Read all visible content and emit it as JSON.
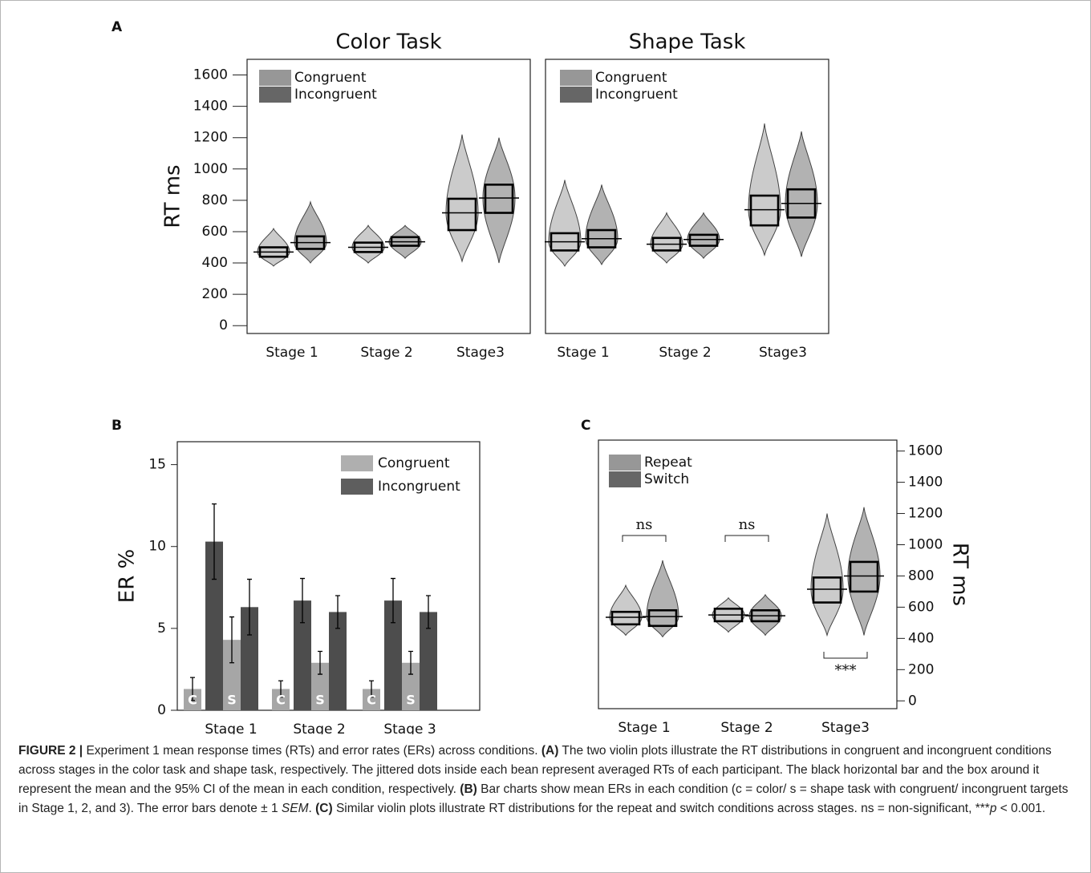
{
  "panels": [
    "A",
    "B",
    "C"
  ],
  "chart_data": [
    {
      "type": "violin",
      "title": "Color Task",
      "y_label": "RT ms",
      "legend": "upper left",
      "categories": [
        "Stage 1",
        "Stage 2",
        "Stage3"
      ],
      "ylim": [
        -50,
        1700
      ],
      "yticks": [
        0,
        200,
        400,
        600,
        800,
        1000,
        1200,
        1400,
        1600
      ],
      "series": [
        {
          "name": "Congruent",
          "color": "#8c8c8c",
          "mean": [
            470,
            500,
            720
          ],
          "ci": [
            [
              440,
              500
            ],
            [
              470,
              530
            ],
            [
              610,
              810
            ]
          ],
          "range": [
            [
              380,
              620
            ],
            [
              400,
              640
            ],
            [
              410,
              1220
            ]
          ]
        },
        {
          "name": "Incongruent",
          "color": "#555555",
          "mean": [
            530,
            535,
            815
          ],
          "ci": [
            [
              490,
              570
            ],
            [
              510,
              565
            ],
            [
              720,
              900
            ]
          ],
          "range": [
            [
              400,
              790
            ],
            [
              430,
              640
            ],
            [
              400,
              1200
            ]
          ]
        }
      ]
    },
    {
      "type": "violin",
      "title": "Shape Task",
      "legend": "upper left",
      "categories": [
        "Stage 1",
        "Stage 2",
        "Stage3"
      ],
      "ylim": [
        -50,
        1700
      ],
      "series": [
        {
          "name": "Congruent",
          "color": "#8c8c8c",
          "mean": [
            535,
            520,
            740
          ],
          "ci": [
            [
              480,
              590
            ],
            [
              480,
              560
            ],
            [
              640,
              830
            ]
          ],
          "range": [
            [
              380,
              930
            ],
            [
              400,
              720
            ],
            [
              450,
              1290
            ]
          ]
        },
        {
          "name": "Incongruent",
          "color": "#555555",
          "mean": [
            555,
            550,
            780
          ],
          "ci": [
            [
              500,
              610
            ],
            [
              510,
              580
            ],
            [
              690,
              870
            ]
          ],
          "range": [
            [
              390,
              900
            ],
            [
              430,
              720
            ],
            [
              440,
              1240
            ]
          ]
        }
      ]
    },
    {
      "type": "bar",
      "y_label": "ER %",
      "legend": "upper right",
      "categories": [
        "Stage 1",
        "Stage 2",
        "Stage 3"
      ],
      "subgroups": [
        "C",
        "S"
      ],
      "ylim": [
        0,
        16.4
      ],
      "yticks": [
        0,
        5,
        10,
        15
      ],
      "series": [
        {
          "name": "Congruent",
          "color": "#a6a6a6",
          "values": [
            [
              1.3,
              4.3
            ],
            [
              1.3,
              2.9
            ],
            [
              1.3,
              2.9
            ]
          ],
          "errors": [
            [
              0.7,
              1.4
            ],
            [
              0.5,
              0.7
            ],
            [
              0.5,
              0.7
            ]
          ]
        },
        {
          "name": "Incongruent",
          "color": "#4d4d4d",
          "values": [
            [
              10.3,
              6.3
            ],
            [
              6.7,
              6.0
            ],
            [
              6.7,
              6.0
            ]
          ],
          "errors": [
            [
              2.3,
              1.7
            ],
            [
              1.35,
              1.0
            ],
            [
              1.35,
              1.0
            ]
          ]
        }
      ]
    },
    {
      "type": "violin",
      "y_label": "RT ms",
      "y_axis_side": "right",
      "legend": "upper left",
      "categories": [
        "Stage 1",
        "Stage 2",
        "Stage3"
      ],
      "ylim": [
        -50,
        1670
      ],
      "yticks": [
        0,
        200,
        400,
        600,
        800,
        1000,
        1200,
        1400,
        1600
      ],
      "annotations": [
        {
          "text": "ns",
          "category": 0,
          "position": "above"
        },
        {
          "text": "ns",
          "category": 1,
          "position": "above"
        },
        {
          "text": "***",
          "category": 2,
          "position": "below"
        }
      ],
      "series": [
        {
          "name": "Repeat",
          "color": "#8c8c8c",
          "mean": [
            535,
            550,
            715
          ],
          "ci": [
            [
              490,
              570
            ],
            [
              510,
              590
            ],
            [
              630,
              790
            ]
          ],
          "range": [
            [
              420,
              740
            ],
            [
              440,
              660
            ],
            [
              420,
              1200
            ]
          ]
        },
        {
          "name": "Switch",
          "color": "#555555",
          "mean": [
            540,
            545,
            800
          ],
          "ci": [
            [
              480,
              580
            ],
            [
              510,
              580
            ],
            [
              700,
              890
            ]
          ],
          "range": [
            [
              410,
              900
            ],
            [
              420,
              680
            ],
            [
              420,
              1240
            ]
          ]
        }
      ]
    }
  ],
  "caption": [
    {
      "text": "FIGURE 2 |",
      "style": "bold"
    },
    {
      "text": " Experiment 1 mean response times (RTs) and error rates (ERs) across conditions. "
    },
    {
      "text": "(A)",
      "style": "bold"
    },
    {
      "text": " The two violin plots illustrate the RT distributions in congruent and incongruent conditions across stages in the color task and shape task, respectively. The jittered dots inside each bean represent averaged RTs of each participant. The black horizontal bar and the box around it represent the mean and the 95% CI of the mean in each condition, respectively. "
    },
    {
      "text": "(B)",
      "style": "bold"
    },
    {
      "text": " Bar charts show mean ERs in each condition (c = color/ s = shape task with congruent/ incongruent targets in Stage 1, 2, and 3). The error bars denote ± 1 "
    },
    {
      "text": "SEM",
      "style": "italic"
    },
    {
      "text": ". "
    },
    {
      "text": "(C)",
      "style": "bold"
    },
    {
      "text": " Similar violin plots illustrate RT distributions for the repeat and switch conditions across stages. ns = non-significant, ***"
    },
    {
      "text": "p",
      "style": "italic"
    },
    {
      "text": " < 0.001."
    }
  ]
}
